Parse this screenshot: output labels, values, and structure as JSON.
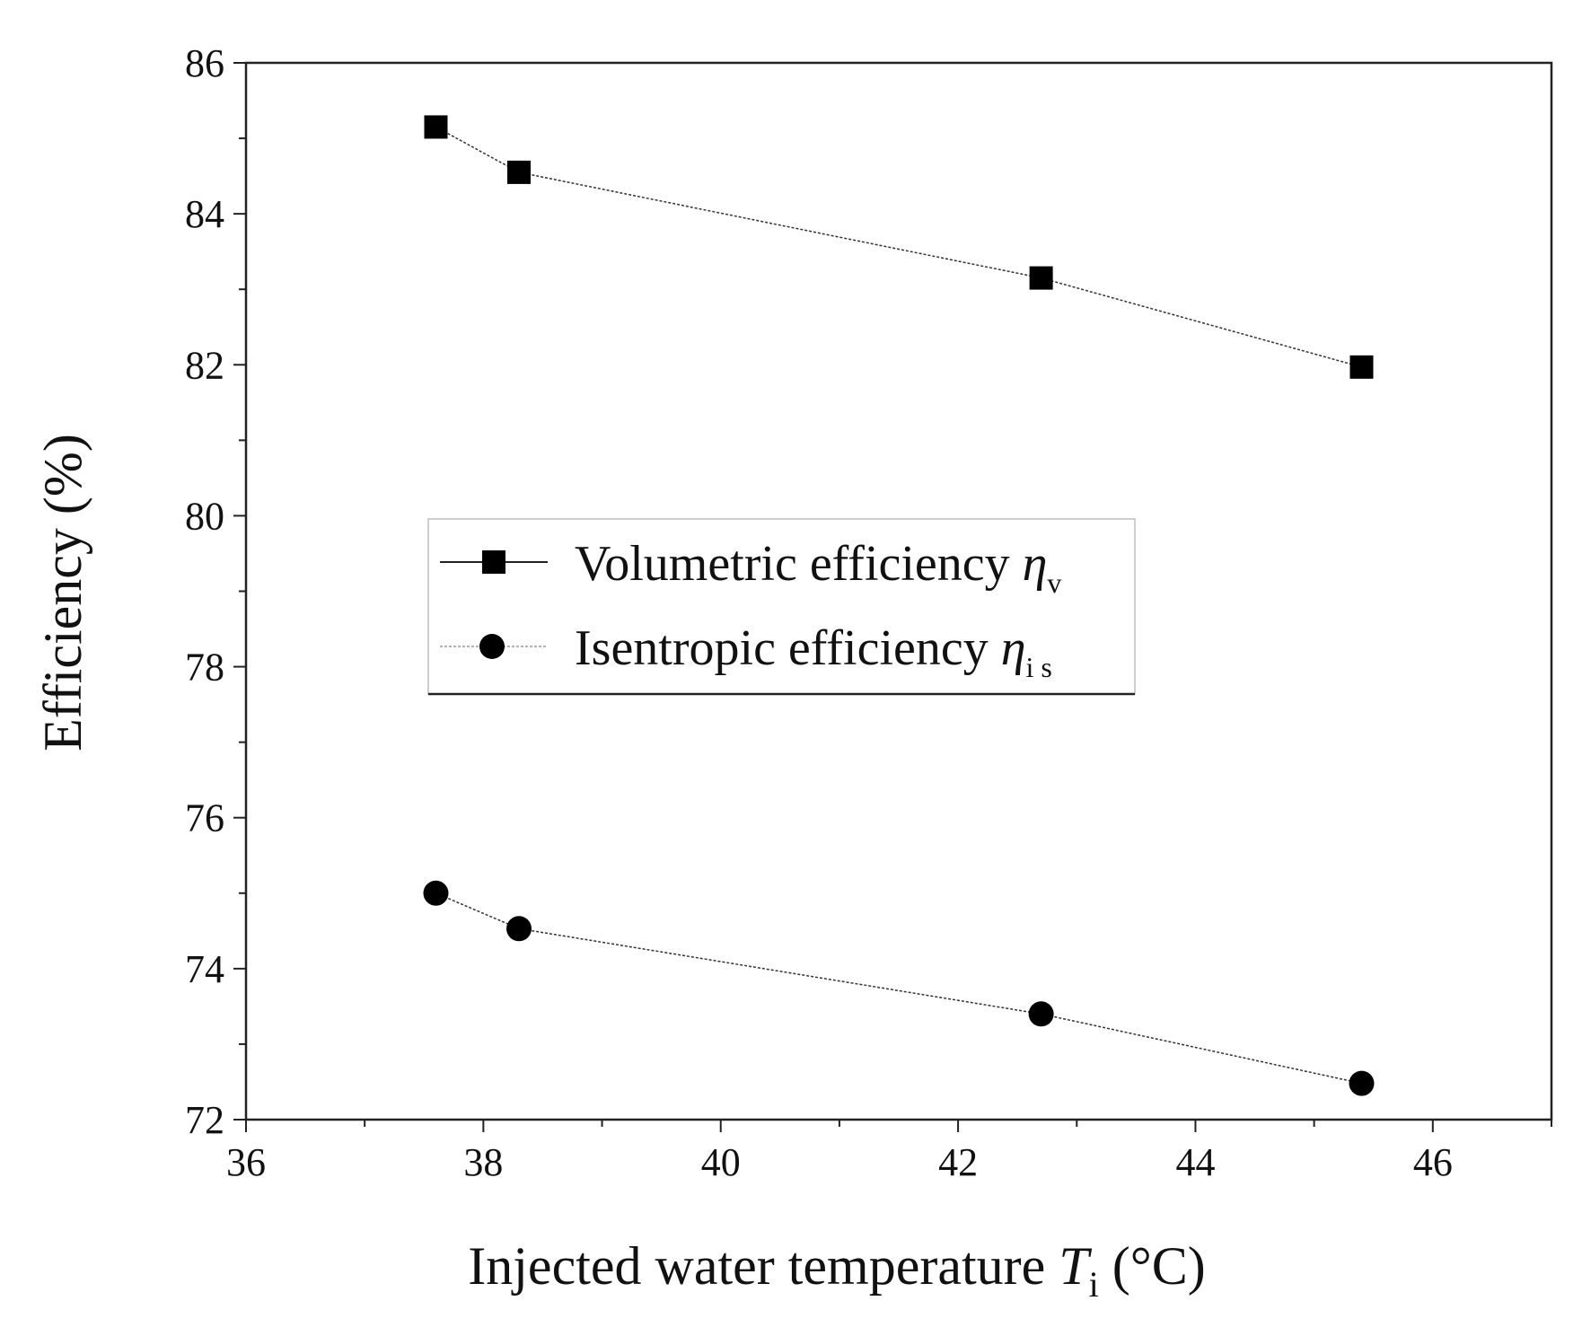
{
  "chart_data": {
    "type": "line",
    "title": "",
    "xlabel": {
      "main": "Injected water temperature ",
      "symbol": "T",
      "subscript": "i",
      "unit": " (°C)"
    },
    "ylabel": "Efficiency (%)",
    "xlim": [
      36,
      47
    ],
    "ylim": [
      72,
      86
    ],
    "xticks": [
      36,
      38,
      40,
      42,
      44,
      46
    ],
    "yticks": [
      72,
      74,
      76,
      78,
      80,
      82,
      84,
      86
    ],
    "x": [
      37.6,
      38.3,
      42.7,
      45.4
    ],
    "series": [
      {
        "name": "Volumetric efficiency ",
        "symbol": "η",
        "subscript": "v",
        "marker": "square",
        "values": [
          85.15,
          84.55,
          83.15,
          81.97
        ]
      },
      {
        "name": "Isentropic efficiency  ",
        "symbol": "η",
        "subscript": "i s",
        "marker": "circle",
        "values": [
          75.0,
          74.53,
          73.4,
          72.48
        ]
      }
    ],
    "legend_position": "center-left",
    "grid": false
  },
  "colors": {
    "marker": "#000000",
    "line": "#333333",
    "axis": "#222222"
  }
}
